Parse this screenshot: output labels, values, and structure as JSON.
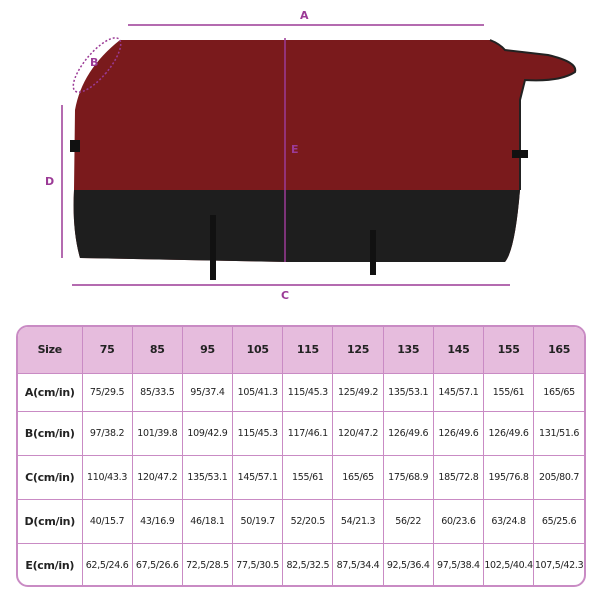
{
  "dimension_labels": {
    "a": "A",
    "b": "B",
    "c": "C",
    "d": "D",
    "e": "E"
  },
  "colors": {
    "blanket_top": "#7a1a1c",
    "blanket_bottom": "#1e1e1e",
    "accent": "#9b3a96",
    "header_bg": "#e6bcdd",
    "border": "#c98bc4"
  },
  "table": {
    "header": [
      "Size",
      "75",
      "85",
      "95",
      "105",
      "115",
      "125",
      "135",
      "145",
      "155",
      "165"
    ],
    "rows": [
      {
        "label": "A(cm/in)",
        "values": [
          "75/29.5",
          "85/33.5",
          "95/37.4",
          "105/41.3",
          "115/45.3",
          "125/49.2",
          "135/53.1",
          "145/57.1",
          "155/61",
          "165/65"
        ]
      },
      {
        "label": "B(cm/in)",
        "values": [
          "97/38.2",
          "101/39.8",
          "109/42.9",
          "115/45.3",
          "117/46.1",
          "120/47.2",
          "126/49.6",
          "126/49.6",
          "126/49.6",
          "131/51.6"
        ]
      },
      {
        "label": "C(cm/in)",
        "values": [
          "110/43.3",
          "120/47.2",
          "135/53.1",
          "145/57.1",
          "155/61",
          "165/65",
          "175/68.9",
          "185/72.8",
          "195/76.8",
          "205/80.7"
        ]
      },
      {
        "label": "D(cm/in)",
        "values": [
          "40/15.7",
          "43/16.9",
          "46/18.1",
          "50/19.7",
          "52/20.5",
          "54/21.3",
          "56/22",
          "60/23.6",
          "63/24.8",
          "65/25.6"
        ]
      },
      {
        "label": "E(cm/in)",
        "values": [
          "62,5/24.6",
          "67,5/26.6",
          "72,5/28.5",
          "77,5/30.5",
          "82,5/32.5",
          "87,5/34.4",
          "92,5/36.4",
          "97,5/38.4",
          "102,5/40.4",
          "107,5/42.3"
        ]
      }
    ]
  }
}
